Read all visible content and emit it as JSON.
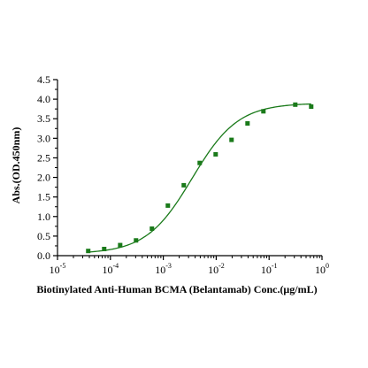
{
  "chart_data": {
    "type": "scatter",
    "title": "",
    "xlabel": "Biotinylated Anti-Human BCMA (Belantamab)  Conc.(μg/mL)",
    "ylabel": "Abs.(OD.450nm)",
    "x_scale": "log",
    "xlim": [
      1e-05,
      1
    ],
    "ylim": [
      0,
      4.5
    ],
    "x_ticks": [
      {
        "value": 1e-05,
        "base": "10",
        "exp": "-5"
      },
      {
        "value": 0.0001,
        "base": "10",
        "exp": "-4"
      },
      {
        "value": 0.001,
        "base": "10",
        "exp": "-3"
      },
      {
        "value": 0.01,
        "base": "10",
        "exp": "-2"
      },
      {
        "value": 0.1,
        "base": "10",
        "exp": "-1"
      },
      {
        "value": 1,
        "base": "10",
        "exp": "0"
      }
    ],
    "y_ticks": [
      "0.0",
      "0.5",
      "1.0",
      "1.5",
      "2.0",
      "2.5",
      "3.0",
      "3.5",
      "4.0",
      "4.5"
    ],
    "grid": false,
    "series": [
      {
        "marker_color": "#1a7a1a",
        "points": [
          {
            "x": 3.81e-05,
            "y": 0.12
          },
          {
            "x": 7.63e-05,
            "y": 0.17
          },
          {
            "x": 0.000153,
            "y": 0.27
          },
          {
            "x": 0.000305,
            "y": 0.39
          },
          {
            "x": 0.00061,
            "y": 0.69
          },
          {
            "x": 0.00122,
            "y": 1.28
          },
          {
            "x": 0.00244,
            "y": 1.8
          },
          {
            "x": 0.00488,
            "y": 2.37
          },
          {
            "x": 0.00977,
            "y": 2.59
          },
          {
            "x": 0.0195,
            "y": 2.96
          },
          {
            "x": 0.0391,
            "y": 3.38
          },
          {
            "x": 0.0781,
            "y": 3.69
          },
          {
            "x": 0.3125,
            "y": 3.86
          },
          {
            "x": 0.625,
            "y": 3.81
          }
        ]
      }
    ],
    "fit_curve": {
      "model": "4PL",
      "color": "#1a7a1a",
      "bottom": 0.05,
      "top": 3.9,
      "ec50": 0.0035,
      "hill": 1.0
    }
  }
}
